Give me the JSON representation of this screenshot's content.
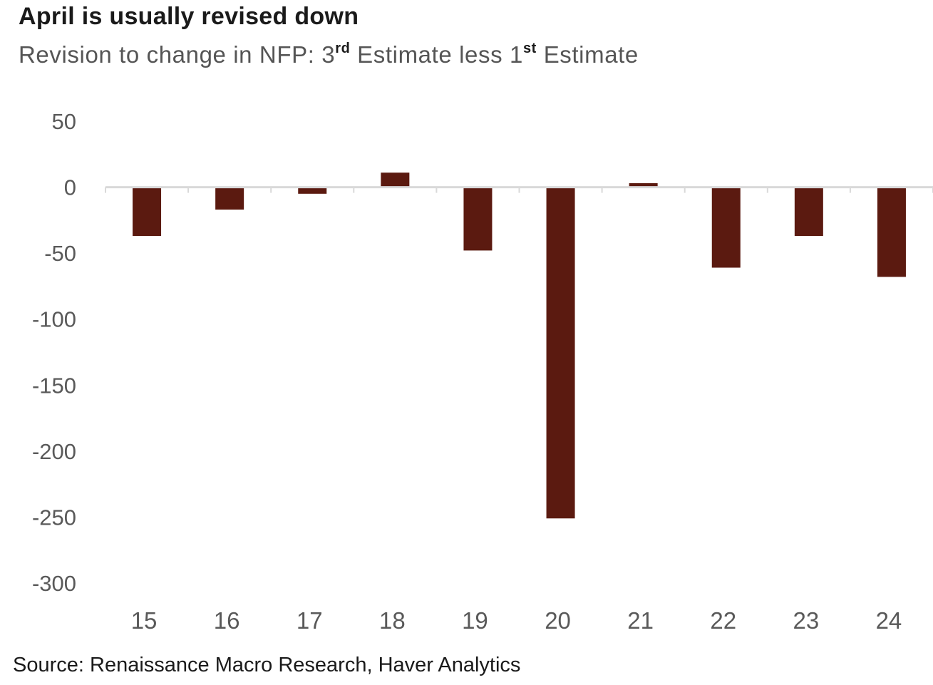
{
  "title": "April is usually revised down",
  "subtitle": {
    "part1": "Revision to change in NFP: 3",
    "sup1": "rd",
    "part2": " Estimate less 1",
    "sup2": "st",
    "part3": " Estimate"
  },
  "source": "Source: Renaissance Macro Research, Haver Analytics",
  "colors": {
    "bar": "#5b1a10",
    "axis": "#d9d9d9",
    "tick_text": "#595959"
  },
  "chart_data": {
    "type": "bar",
    "title": "April is usually revised down",
    "subtitle": "Revision to change in NFP: 3rd Estimate less 1st Estimate",
    "categories": [
      "15",
      "16",
      "17",
      "18",
      "19",
      "20",
      "21",
      "22",
      "23",
      "24"
    ],
    "values": [
      -37,
      -17,
      -5,
      11,
      -48,
      -251,
      3,
      -61,
      -37,
      -68
    ],
    "ylim": [
      -300,
      50
    ],
    "yticks": [
      50,
      0,
      -50,
      -100,
      -150,
      -200,
      -250,
      -300
    ],
    "xlabel": "",
    "ylabel": "",
    "grid": false,
    "legend": "none"
  }
}
